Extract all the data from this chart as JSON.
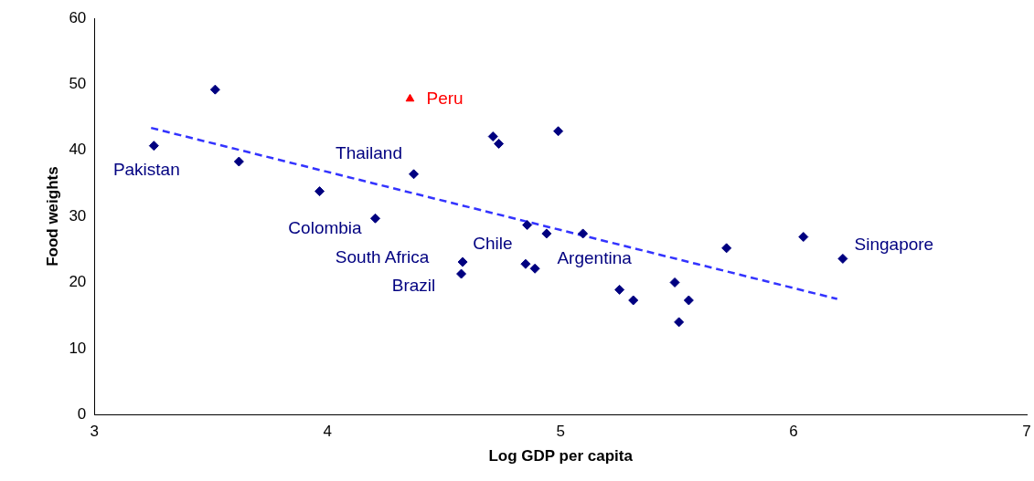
{
  "chart_data": {
    "type": "scatter",
    "xlabel": "Log GDP per capita",
    "ylabel": "Food weights",
    "xlim": [
      3,
      7
    ],
    "xticks": [
      3,
      4,
      5,
      6,
      7
    ],
    "ylim": [
      0,
      60
    ],
    "yticks": [
      0,
      10,
      20,
      30,
      40,
      50,
      60
    ],
    "grid": false,
    "legend": false,
    "series": [
      {
        "marker": "diamond",
        "color": "#000080",
        "x": [
          3.255,
          3.518,
          3.62,
          3.966,
          4.205,
          4.37,
          4.71,
          4.735,
          4.99,
          4.857,
          4.94,
          5.096,
          4.58,
          4.574,
          4.85,
          4.89,
          5.253,
          5.312,
          5.49,
          5.55,
          5.508,
          5.712,
          6.042,
          6.211
        ],
        "values": [
          40.7,
          49.2,
          38.3,
          33.8,
          29.7,
          36.4,
          42.1,
          41.0,
          42.9,
          28.7,
          27.4,
          27.4,
          23.1,
          21.3,
          22.8,
          22.1,
          18.9,
          17.3,
          20.0,
          17.3,
          14.0,
          25.2,
          26.9,
          23.6
        ]
      },
      {
        "type": "scatter",
        "name": "Peru",
        "marker": "triangle",
        "color": "#ff0000",
        "x": [
          4.354
        ],
        "values": [
          47.8
        ]
      },
      {
        "type": "line",
        "marker": "none",
        "line_style": "dashed",
        "color": "#3333ff",
        "x": [
          3.243,
          6.187
        ],
        "values": [
          43.4,
          17.5
        ]
      }
    ],
    "annotations": [
      {
        "text": "Pakistan",
        "x": 3.255,
        "y": 40.7
      },
      {
        "text": "Thailand",
        "x": 4.37,
        "y": 36.4
      },
      {
        "text": "Colombia",
        "x": 4.205,
        "y": 29.7
      },
      {
        "text": "South Africa",
        "x": 4.58,
        "y": 23.1
      },
      {
        "text": "Brazil",
        "x": 4.574,
        "y": 21.3
      },
      {
        "text": "Chile",
        "x": 4.85,
        "y": 22.8
      },
      {
        "text": "Argentina",
        "x": 4.89,
        "y": 22.1
      },
      {
        "text": "Singapore",
        "x": 6.211,
        "y": 23.6
      }
    ]
  }
}
